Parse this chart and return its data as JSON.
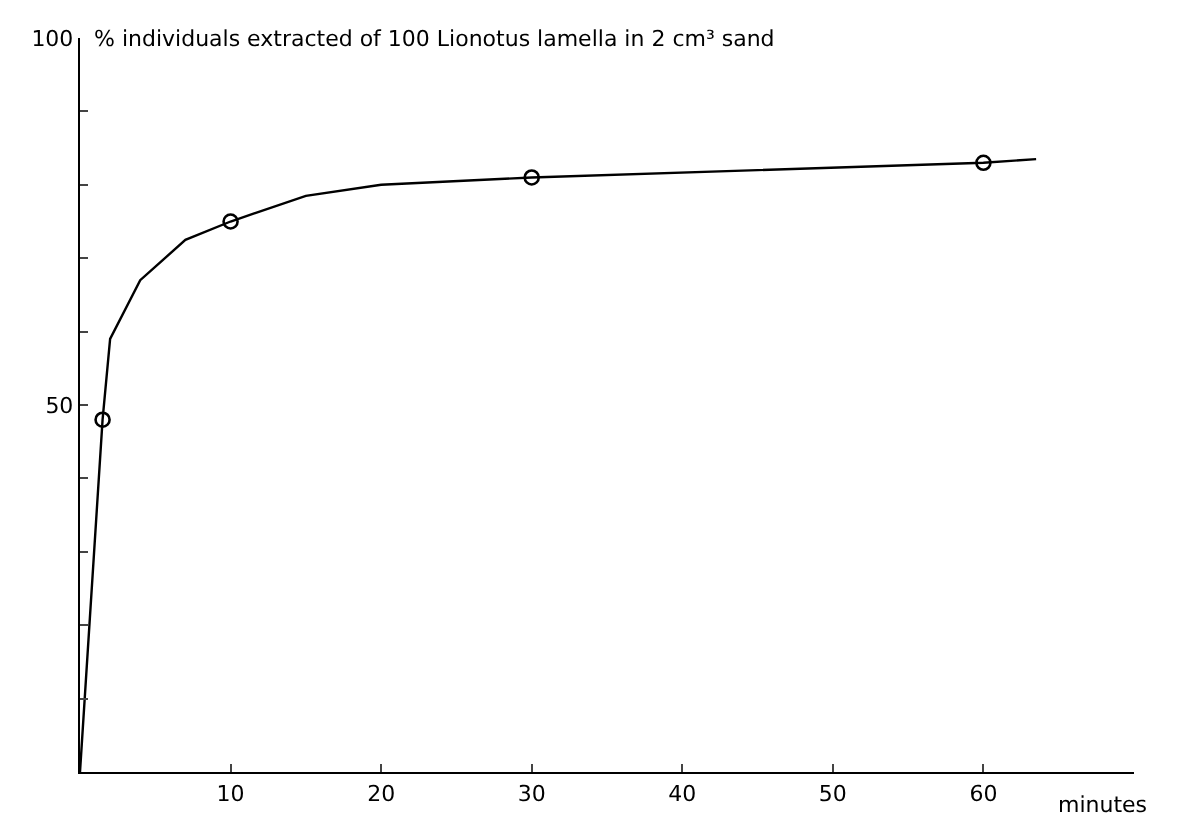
{
  "chart_data": {
    "type": "line",
    "ylabel": "% individuals extracted of 100 Lionotus lamella in 2 cm³ sand",
    "xlabel": "minutes",
    "xlim": [
      0,
      70
    ],
    "xticks": [
      {
        "value": 0,
        "label": null
      },
      10,
      20,
      30,
      40,
      50,
      60
    ],
    "ylim": [
      0,
      100
    ],
    "yticks": [
      {
        "value": 10,
        "label": null
      },
      {
        "value": 20,
        "label": null
      },
      {
        "value": 30,
        "label": null
      },
      {
        "value": 40,
        "label": null
      },
      50,
      {
        "value": 60,
        "label": null
      },
      {
        "value": 70,
        "label": null
      },
      {
        "value": 80,
        "label": null
      },
      {
        "value": 90,
        "label": null
      },
      100
    ],
    "series": [
      {
        "color": "#000000",
        "marker": "none",
        "line_style": "solid",
        "x": [
          0,
          1.5,
          2,
          4,
          7,
          10,
          15,
          20,
          30,
          45,
          60,
          63.5
        ],
        "values": [
          0,
          48,
          59,
          67,
          72.5,
          75,
          78.5,
          80,
          81,
          82,
          83,
          83.5
        ]
      },
      {
        "type": "scatter",
        "color": "#000000",
        "marker": "circle",
        "x": [
          1.5,
          10,
          30,
          60
        ],
        "values": [
          48,
          75,
          81,
          83
        ]
      }
    ]
  }
}
